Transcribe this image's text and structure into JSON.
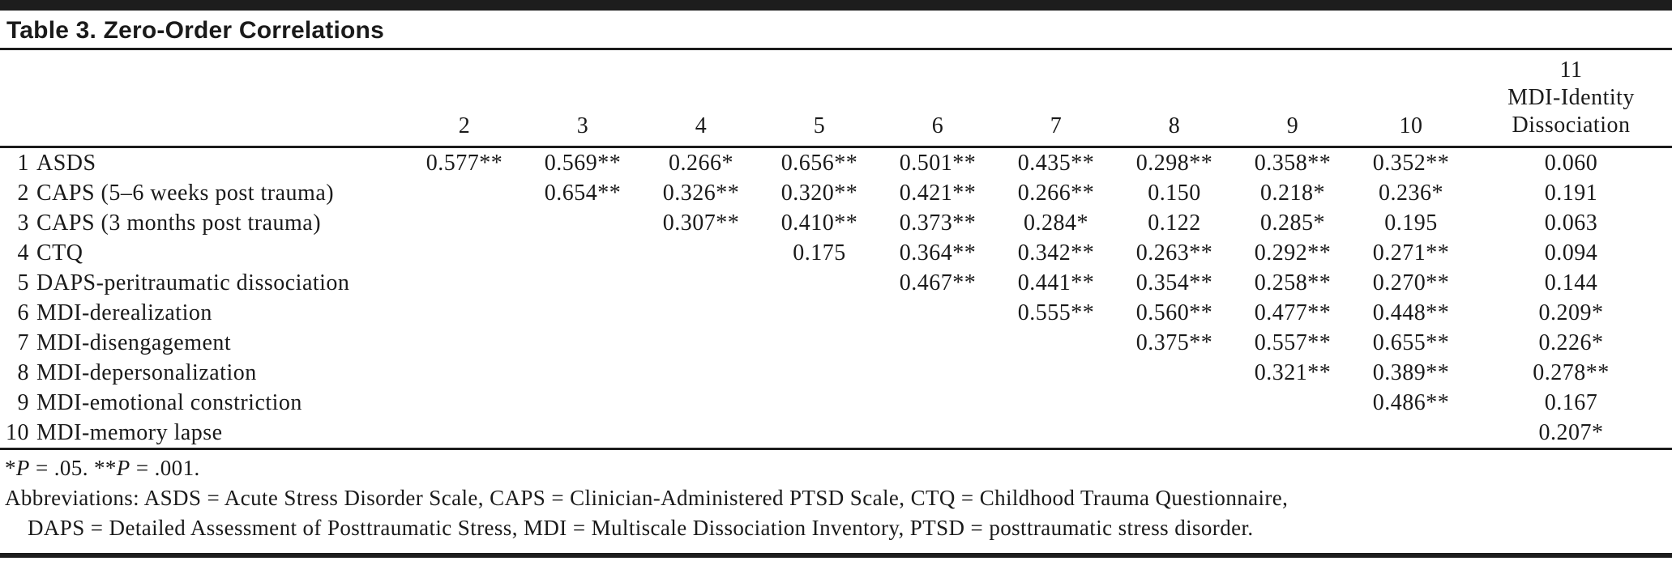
{
  "title": "Table 3. Zero-Order Correlations",
  "colors": {
    "text": "#1a1a1a",
    "rule": "#1c1c1c",
    "background": "#ffffff",
    "bar": "#1d1d1d"
  },
  "table": {
    "header": {
      "columns": [
        "2",
        "3",
        "4",
        "5",
        "6",
        "7",
        "8",
        "9",
        "10"
      ],
      "col11": {
        "num": "11",
        "line1": "MDI-Identity",
        "line2": "Dissociation"
      }
    },
    "rows": [
      {
        "num": "1",
        "label": "ASDS",
        "values": [
          "0.577**",
          "0.569**",
          "0.266*",
          "0.656**",
          "0.501**",
          "0.435**",
          "0.298**",
          "0.358**",
          "0.352**",
          "0.060"
        ]
      },
      {
        "num": "2",
        "label": "CAPS (5–6 weeks post trauma)",
        "values": [
          "",
          "0.654**",
          "0.326**",
          "0.320**",
          "0.421**",
          "0.266**",
          "0.150",
          "0.218*",
          "0.236*",
          "0.191"
        ]
      },
      {
        "num": "3",
        "label": "CAPS (3 months post trauma)",
        "values": [
          "",
          "",
          "0.307**",
          "0.410**",
          "0.373**",
          "0.284*",
          "0.122",
          "0.285*",
          "0.195",
          "0.063"
        ]
      },
      {
        "num": "4",
        "label": "CTQ",
        "values": [
          "",
          "",
          "",
          "0.175",
          "0.364**",
          "0.342**",
          "0.263**",
          "0.292**",
          "0.271**",
          "0.094"
        ]
      },
      {
        "num": "5",
        "label": "DAPS-peritraumatic dissociation",
        "values": [
          "",
          "",
          "",
          "",
          "0.467**",
          "0.441**",
          "0.354**",
          "0.258**",
          "0.270**",
          "0.144"
        ]
      },
      {
        "num": "6",
        "label": "MDI-derealization",
        "values": [
          "",
          "",
          "",
          "",
          "",
          "0.555**",
          "0.560**",
          "0.477**",
          "0.448**",
          "0.209*"
        ]
      },
      {
        "num": "7",
        "label": "MDI-disengagement",
        "values": [
          "",
          "",
          "",
          "",
          "",
          "",
          "0.375**",
          "0.557**",
          "0.655**",
          "0.226*"
        ]
      },
      {
        "num": "8",
        "label": "MDI-depersonalization",
        "values": [
          "",
          "",
          "",
          "",
          "",
          "",
          "",
          "0.321**",
          "0.389**",
          "0.278**"
        ]
      },
      {
        "num": "9",
        "label": "MDI-emotional constriction",
        "values": [
          "",
          "",
          "",
          "",
          "",
          "",
          "",
          "",
          "0.486**",
          "0.167"
        ]
      },
      {
        "num": "10",
        "label": "MDI-memory lapse",
        "values": [
          "",
          "",
          "",
          "",
          "",
          "",
          "",
          "",
          "",
          "0.207*"
        ]
      }
    ]
  },
  "footnotes": {
    "sig": [
      "*",
      "P",
      " = .05. **",
      "P",
      " = .001."
    ],
    "abbrev_line1": "Abbreviations: ASDS = Acute Stress Disorder Scale, CAPS = Clinician-Administered PTSD Scale, CTQ = Childhood Trauma Questionnaire,",
    "abbrev_line2": "DAPS = Detailed Assessment of Posttraumatic Stress, MDI = Multiscale Dissociation Inventory, PTSD = posttraumatic stress disorder."
  }
}
